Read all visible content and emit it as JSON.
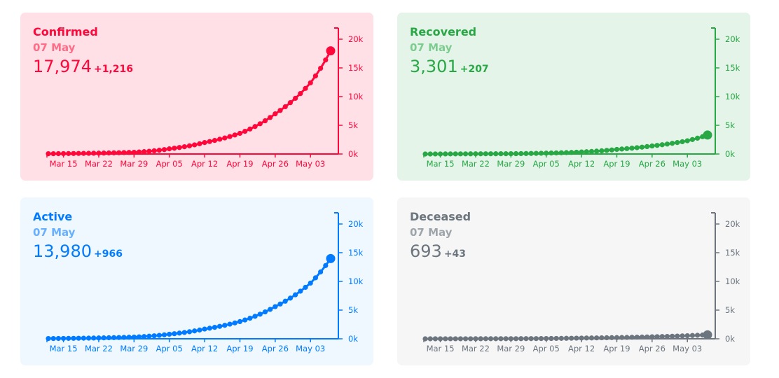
{
  "date_labels": [
    "Mar 15",
    "Mar 22",
    "Mar 29",
    "Apr 05",
    "Apr 12",
    "Apr 19",
    "Apr 26",
    "May 03"
  ],
  "y_tick_labels": [
    "0k",
    "5k",
    "10k",
    "15k",
    "20k"
  ],
  "chart_data": [
    {
      "type": "line",
      "title": "Confirmed",
      "subtitle": "07 May",
      "value_text": "17,974",
      "delta_text": "+1,216",
      "color": "#ff073a",
      "background": "#ffe0e6",
      "title_color": "#ff073a",
      "date_color": "#ff6c87",
      "ylim": [
        0,
        20000
      ],
      "x_range": [
        "2020-03-12",
        "2020-05-07"
      ],
      "anchors": [
        {
          "x": "2020-03-12",
          "y": 50
        },
        {
          "x": "2020-03-22",
          "y": 150
        },
        {
          "x": "2020-03-29",
          "y": 300
        },
        {
          "x": "2020-04-05",
          "y": 900
        },
        {
          "x": "2020-04-12",
          "y": 2000
        },
        {
          "x": "2020-04-19",
          "y": 3600
        },
        {
          "x": "2020-04-26",
          "y": 7000
        },
        {
          "x": "2020-05-03",
          "y": 12400
        },
        {
          "x": "2020-05-07",
          "y": 17974
        }
      ]
    },
    {
      "type": "line",
      "title": "Recovered",
      "subtitle": "07 May",
      "value_text": "3,301",
      "delta_text": "+207",
      "color": "#28a745",
      "background": "#e4f4e8",
      "title_color": "#28a745",
      "date_color": "#7ccb8f",
      "ylim": [
        0,
        20000
      ],
      "x_range": [
        "2020-03-12",
        "2020-05-07"
      ],
      "anchors": [
        {
          "x": "2020-03-12",
          "y": 0
        },
        {
          "x": "2020-03-29",
          "y": 50
        },
        {
          "x": "2020-04-05",
          "y": 150
        },
        {
          "x": "2020-04-12",
          "y": 350
        },
        {
          "x": "2020-04-19",
          "y": 800
        },
        {
          "x": "2020-04-26",
          "y": 1400
        },
        {
          "x": "2020-05-03",
          "y": 2300
        },
        {
          "x": "2020-05-07",
          "y": 3301
        }
      ]
    },
    {
      "type": "line",
      "title": "Active",
      "subtitle": "07 May",
      "value_text": "13,980",
      "delta_text": "+966",
      "color": "#007bff",
      "background": "#eff7ff",
      "title_color": "#007bff",
      "date_color": "#66b0ff",
      "ylim": [
        0,
        20000
      ],
      "x_range": [
        "2020-03-12",
        "2020-05-07"
      ],
      "anchors": [
        {
          "x": "2020-03-12",
          "y": 50
        },
        {
          "x": "2020-03-22",
          "y": 150
        },
        {
          "x": "2020-03-29",
          "y": 300
        },
        {
          "x": "2020-04-05",
          "y": 800
        },
        {
          "x": "2020-04-12",
          "y": 1700
        },
        {
          "x": "2020-04-19",
          "y": 3000
        },
        {
          "x": "2020-04-26",
          "y": 5600
        },
        {
          "x": "2020-05-03",
          "y": 9700
        },
        {
          "x": "2020-05-07",
          "y": 13980
        }
      ]
    },
    {
      "type": "line",
      "title": "Deceased",
      "subtitle": "07 May",
      "value_text": "693",
      "delta_text": "+43",
      "color": "#6c757d",
      "background": "#f6f6f7",
      "title_color": "#6c757d",
      "date_color": "#9ea5aa",
      "ylim": [
        0,
        20000
      ],
      "x_range": [
        "2020-03-12",
        "2020-05-07"
      ],
      "anchors": [
        {
          "x": "2020-03-12",
          "y": 0
        },
        {
          "x": "2020-03-29",
          "y": 20
        },
        {
          "x": "2020-04-12",
          "y": 130
        },
        {
          "x": "2020-04-26",
          "y": 350
        },
        {
          "x": "2020-05-07",
          "y": 693
        }
      ]
    }
  ]
}
